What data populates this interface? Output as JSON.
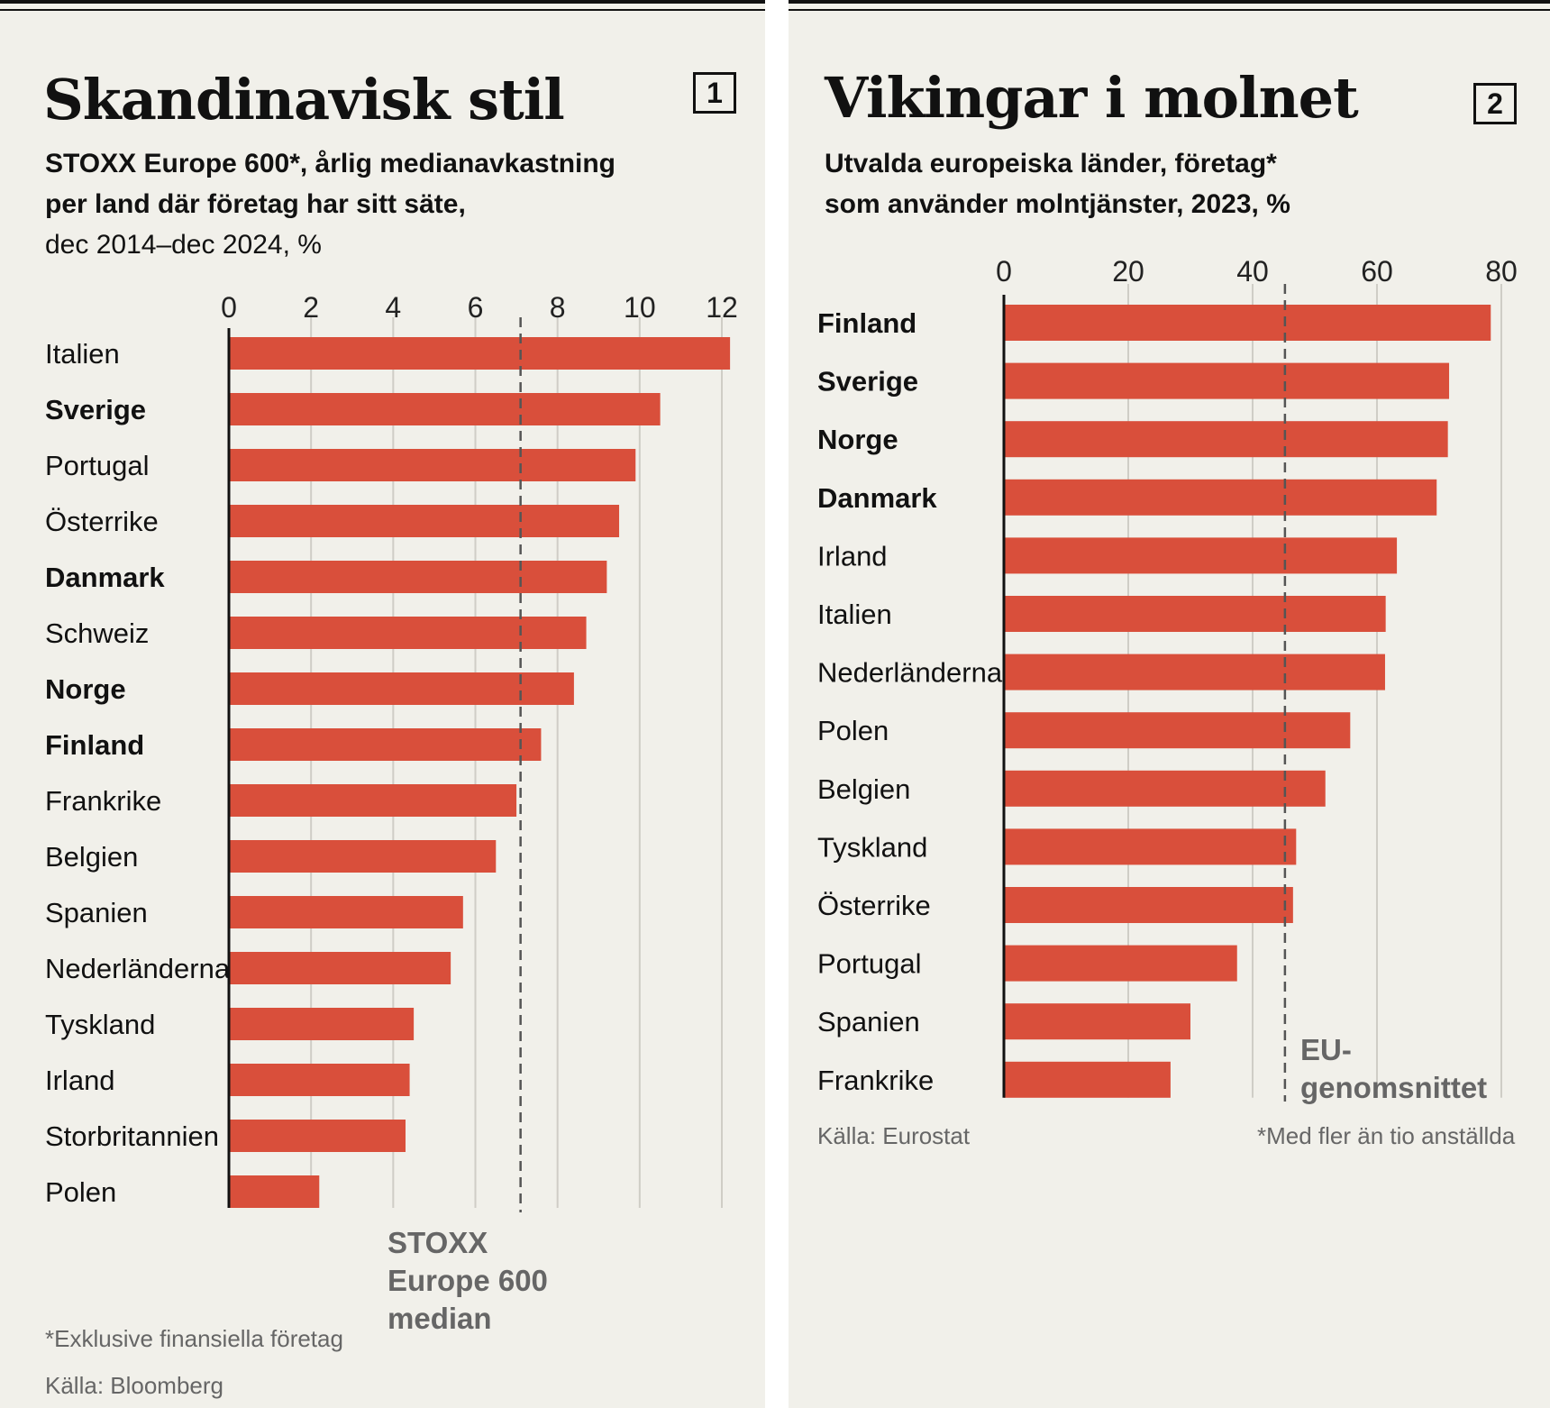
{
  "charts": {
    "panel1": {
      "title": "Skandinavisk stil",
      "number": "1",
      "subtitle_line1": "STOXX Europe 600*, årlig medianavkastning",
      "subtitle_line2": "per land där företag har sitt säte,",
      "subtitle_line3": "dec 2014–dec 2024, %",
      "reference_label_line1": "STOXX",
      "reference_label_line2": "Europe 600",
      "reference_label_line3": "median",
      "footnote": "*Exklusive finansiella företag",
      "source": "Källa: Bloomberg"
    },
    "panel2": {
      "title": "Vikingar i molnet",
      "number": "2",
      "subtitle_line1": "Utvalda europeiska länder, företag*",
      "subtitle_line2": "som använder molntjänster, 2023, %",
      "reference_label_line1": "EU-",
      "reference_label_line2": "genomsnittet",
      "source": "Källa: Eurostat",
      "footnote": "*Med fler än tio anställda"
    }
  },
  "colors": {
    "bar": "#d94f3b",
    "background": "#f1f0ea",
    "grid": "#cfcdc6",
    "reference_line": "#555555",
    "muted_text": "#666666"
  },
  "chart_data": [
    {
      "type": "bar",
      "orientation": "horizontal",
      "categories": [
        "Italien",
        "Sverige",
        "Portugal",
        "Österrike",
        "Danmark",
        "Schweiz",
        "Norge",
        "Finland",
        "Frankrike",
        "Belgien",
        "Spanien",
        "Nederländerna",
        "Tyskland",
        "Irland",
        "Storbritannien",
        "Polen"
      ],
      "bold_categories": [
        "Sverige",
        "Danmark",
        "Norge",
        "Finland"
      ],
      "values": [
        12.2,
        10.5,
        9.9,
        9.5,
        9.2,
        8.7,
        8.4,
        7.6,
        7.0,
        6.5,
        5.7,
        5.4,
        4.5,
        4.4,
        4.3,
        2.2
      ],
      "xlim": [
        0,
        12
      ],
      "xticks": [
        0,
        2,
        4,
        6,
        8,
        10,
        12
      ],
      "reference_value": 7.1,
      "grid": true
    },
    {
      "type": "bar",
      "orientation": "horizontal",
      "categories": [
        "Finland",
        "Sverige",
        "Norge",
        "Danmark",
        "Irland",
        "Italien",
        "Nederländerna",
        "Polen",
        "Belgien",
        "Tyskland",
        "Österrike",
        "Portugal",
        "Spanien",
        "Frankrike"
      ],
      "bold_categories": [
        "Finland",
        "Sverige",
        "Norge",
        "Danmark"
      ],
      "values": [
        78.3,
        71.6,
        71.4,
        69.6,
        63.2,
        61.4,
        61.3,
        55.7,
        51.7,
        47.0,
        46.5,
        37.5,
        30.0,
        26.8
      ],
      "xlim": [
        0,
        80
      ],
      "xticks": [
        0,
        20,
        40,
        60,
        80
      ],
      "reference_value": 45.2,
      "grid": true
    }
  ]
}
